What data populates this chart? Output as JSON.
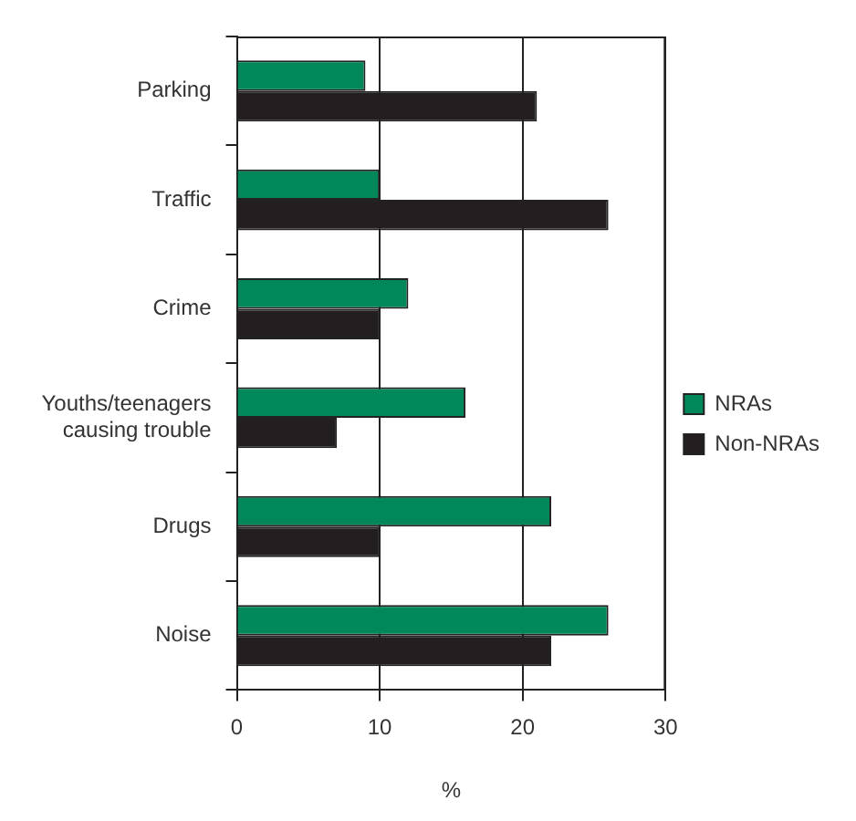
{
  "chart_data": {
    "type": "bar",
    "orientation": "horizontal",
    "categories": [
      "Parking",
      "Traffic",
      "Crime",
      "Youths/teenagers causing trouble",
      "Drugs",
      "Noise"
    ],
    "series": [
      {
        "name": "NRAs",
        "color": "#00875a",
        "values": [
          9,
          10,
          12,
          16,
          22,
          26
        ]
      },
      {
        "name": "Non-NRAs",
        "color": "#231f20",
        "values": [
          21,
          26,
          10,
          7,
          10,
          22
        ]
      }
    ],
    "xlabel": "%",
    "xlim": [
      0,
      30
    ],
    "xticks": [
      0,
      10,
      20,
      30
    ],
    "grid": "x",
    "legend": "right"
  }
}
